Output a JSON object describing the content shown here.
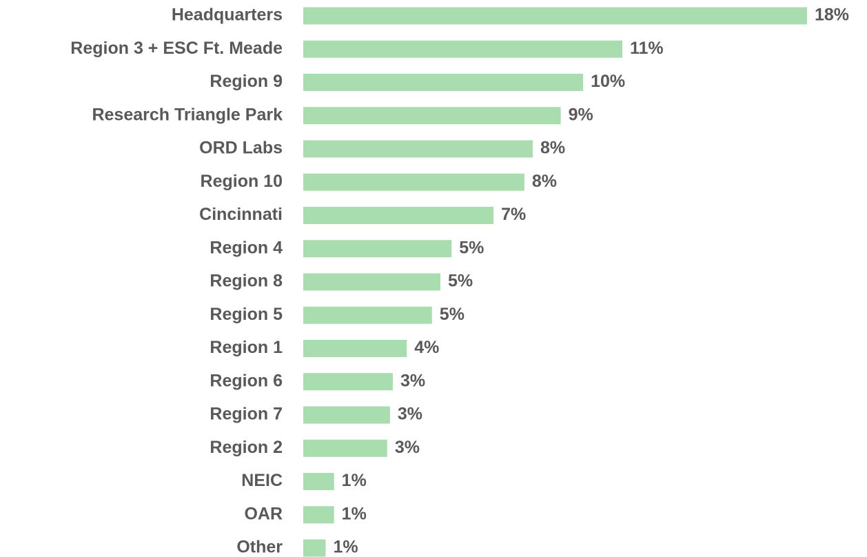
{
  "chart_data": {
    "type": "hbar",
    "categories": [
      "Headquarters",
      "Region 3 + ESC Ft. Meade",
      "Region 9",
      "Research Triangle Park",
      "ORD Labs",
      "Region 10",
      "Cincinnati",
      "Region 4",
      "Region 8",
      "Region 5",
      "Region 1",
      "Region 6",
      "Region 7",
      "Region 2",
      "NEIC",
      "OAR",
      "Other"
    ],
    "values": [
      18.0,
      11.4,
      10.0,
      9.2,
      8.2,
      7.9,
      6.8,
      5.3,
      4.9,
      4.6,
      3.7,
      3.2,
      3.1,
      3.0,
      1.1,
      1.1,
      0.8
    ],
    "value_labels": [
      "18%",
      "11%",
      "10%",
      "9%",
      "8%",
      "8%",
      "7%",
      "5%",
      "5%",
      "5%",
      "4%",
      "3%",
      "3%",
      "3%",
      "1%",
      "1%",
      "1%"
    ],
    "color": "#a9dcae"
  }
}
